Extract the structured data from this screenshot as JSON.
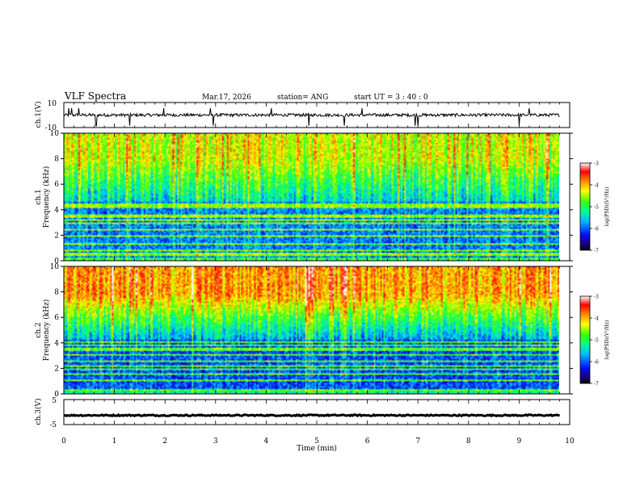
{
  "header": {
    "title": "VLF Spectra",
    "date": "Mar.17, 2026",
    "station": "station= ANG",
    "start": "start  UT =   3  : 40 : 0"
  },
  "chart_data": [
    {
      "type": "line",
      "panel": "ch1-waveform",
      "ylabel": "ch.1(V)",
      "ylim": [
        -10,
        10
      ],
      "yticks": [
        "10",
        "-10"
      ],
      "baseline": 0,
      "noise_amplitude": 1.2,
      "spikes_up": [
        0.1,
        0.16,
        0.3,
        1.3,
        1.97,
        2.9,
        4.1,
        4.85,
        5.9,
        7.0,
        9.2
      ],
      "spikes_down": [
        0.63,
        0.64,
        1.3,
        2.95,
        4.85,
        5.55,
        6.95,
        7.0,
        9.0
      ]
    },
    {
      "type": "heatmap",
      "panel": "ch1-spectrogram",
      "ylabel": "Frequency (kHz)",
      "channel_label": "ch.1",
      "xlim": [
        0,
        9.8
      ],
      "ylim": [
        0,
        10
      ],
      "yticks": [
        "0",
        "2",
        "4",
        "6",
        "8",
        "10"
      ],
      "band_top_khz": 4.6,
      "band_power_log": -5.9,
      "upper_power_log": -4.4,
      "bright_lines_khz": [
        0.5,
        0.85,
        1.3,
        1.9,
        2.45,
        2.95,
        3.15,
        3.5,
        4.25,
        4.4
      ],
      "colorbar": {
        "label": "log(PSD)(V²/Hz)",
        "range": [
          -7,
          -3
        ],
        "ticks": [
          "-3",
          "-4",
          "-5",
          "-6",
          "-7"
        ]
      }
    },
    {
      "type": "heatmap",
      "panel": "ch2-spectrogram",
      "ylabel": "Frequency (kHz)",
      "channel_label": "ch.2",
      "xlim": [
        0,
        9.8
      ],
      "ylim": [
        0,
        10
      ],
      "yticks": [
        "0",
        "2",
        "4",
        "6",
        "8",
        "10"
      ],
      "band_top_khz": 4.3,
      "band_power_log": -6.1,
      "upper_power_log": -3.9,
      "bright_lines_khz": [
        0.3,
        1.05,
        1.55,
        1.9,
        2.2,
        2.55,
        3.05,
        3.5,
        3.85,
        4.05
      ],
      "colorbar": {
        "label": "log(PSD)(V²/Hz)",
        "range": [
          -7,
          -3
        ],
        "ticks": [
          "-3",
          "-4",
          "-5",
          "-6",
          "-7"
        ]
      }
    },
    {
      "type": "line",
      "panel": "ch3-waveform",
      "ylabel": "ch.3(V)",
      "ylim": [
        -5,
        5
      ],
      "yticks": [
        "5",
        "-5"
      ],
      "baseline": -1.3,
      "noise_amplitude": 0.25
    }
  ],
  "x_axis": {
    "label": "Time  (min)",
    "range": [
      0,
      10
    ],
    "ticks": [
      "0",
      "1",
      "2",
      "3",
      "4",
      "5",
      "6",
      "7",
      "8",
      "9",
      "10"
    ]
  }
}
